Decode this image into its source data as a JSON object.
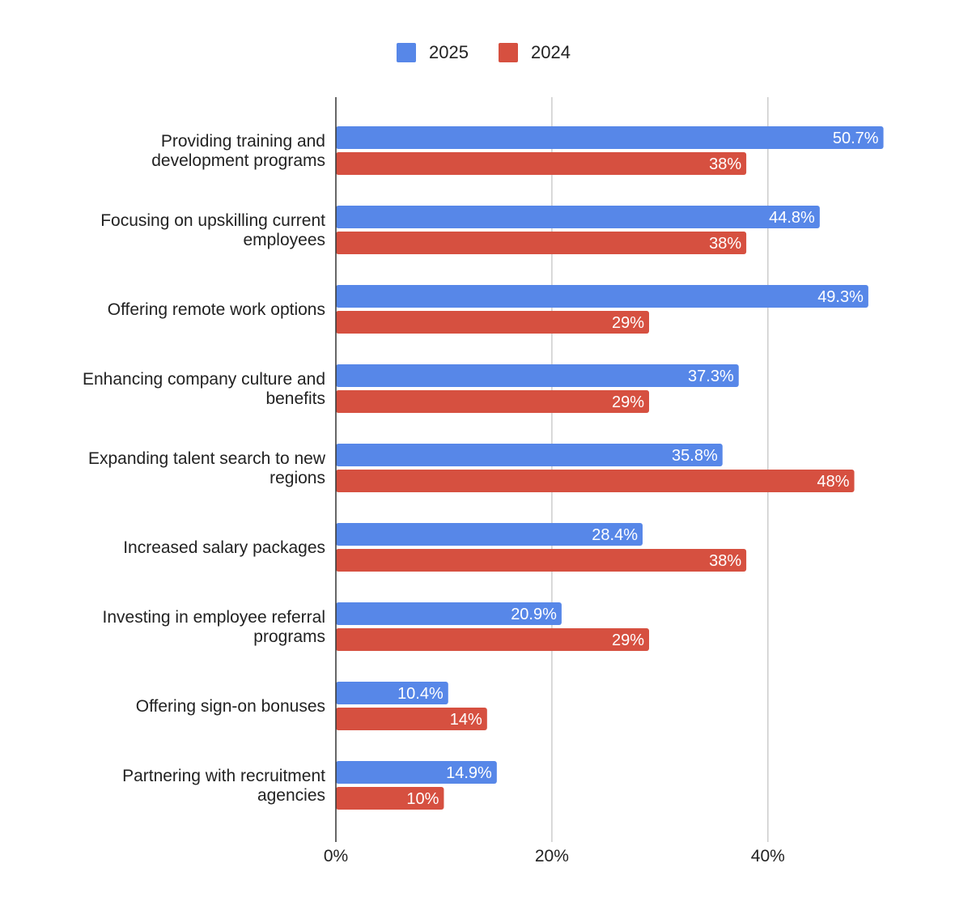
{
  "chart_data": {
    "type": "bar",
    "orientation": "horizontal",
    "categories": [
      [
        "Providing training and",
        "development programs"
      ],
      [
        "Focusing on upskilling current",
        "employees"
      ],
      [
        "Offering remote work options"
      ],
      [
        "Enhancing company culture and",
        "benefits"
      ],
      [
        "Expanding talent search to new",
        "regions"
      ],
      [
        "Increased salary packages"
      ],
      [
        "Investing in employee referral",
        "programs"
      ],
      [
        "Offering sign-on bonuses"
      ],
      [
        "Partnering with recruitment",
        "agencies"
      ]
    ],
    "series": [
      {
        "name": "2025",
        "color": "#5787e8",
        "values": [
          50.7,
          44.8,
          49.3,
          37.3,
          35.8,
          28.4,
          20.9,
          10.4,
          14.9
        ],
        "labels": [
          "50.7%",
          "44.8%",
          "49.3%",
          "37.3%",
          "35.8%",
          "28.4%",
          "20.9%",
          "10.4%",
          "14.9%"
        ]
      },
      {
        "name": "2024",
        "color": "#d65040",
        "values": [
          38,
          38,
          29,
          29,
          48,
          38,
          29,
          14,
          10
        ],
        "labels": [
          "38%",
          "38%",
          "29%",
          "29%",
          "48%",
          "38%",
          "29%",
          "14%",
          "10%"
        ]
      }
    ],
    "xlim": [
      0,
      50
    ],
    "xticks": [
      0,
      20,
      40
    ],
    "xtick_labels": [
      "0%",
      "20%",
      "40%"
    ],
    "grid": true,
    "legend_position": "top-center",
    "title": "",
    "xlabel": "",
    "ylabel": ""
  }
}
